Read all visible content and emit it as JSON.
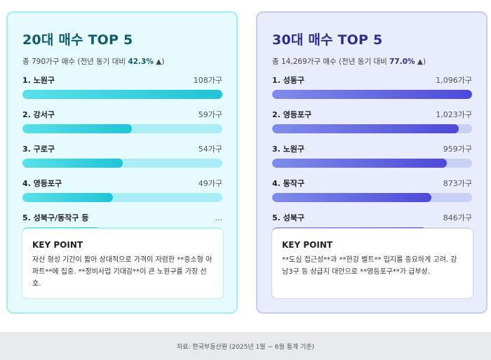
{
  "cards": [
    {
      "title": "20대 매수 TOP 5",
      "subtitle_prefix": "총 790가구 매수 (전년 동기 대비 ",
      "subtitle_pct": "42.3%",
      "subtitle_suffix": " ▲)",
      "items": [
        {
          "name": "1. 노원구",
          "value": "108가구",
          "level": 1.0
        },
        {
          "name": "2. 강서구",
          "value": "59가구",
          "level": 0.546
        },
        {
          "name": "3. 구로구",
          "value": "54가구",
          "level": 0.5
        },
        {
          "name": "4. 영등포구",
          "value": "49가구",
          "level": 0.454
        },
        {
          "name": "5. 성북구/동작구 등",
          "value": "...",
          "level": 0.39
        }
      ],
      "key_title": "KEY POINT",
      "key_text": "자산 형성 기간이 짧아 상대적으로 가격이 저렴한 **중소형 아파트**에 집중. **정비사업 기대감**이 큰 노원구를 가장 선호."
    },
    {
      "title": "30대 매수 TOP 5",
      "subtitle_prefix": "총 14,269가구 매수 (전년 동기 대비 ",
      "subtitle_pct": "77.0%",
      "subtitle_suffix": " ▲)",
      "items": [
        {
          "name": "1. 성동구",
          "value": "1,096가구",
          "level": 1.0
        },
        {
          "name": "2. 영등포구",
          "value": "1,023가구",
          "level": 0.933
        },
        {
          "name": "3. 노원구",
          "value": "959가구",
          "level": 0.875
        },
        {
          "name": "4. 동작구",
          "value": "873가구",
          "level": 0.797
        },
        {
          "name": "5. 성북구",
          "value": "846가구",
          "level": 0.772
        }
      ],
      "key_title": "KEY POINT",
      "key_text": "**도심 접근성**과 **한강 벨트** 입지를 중요하게 고려. 강남3구 등 상급지 대안으로 **영등포구**가 급부상."
    }
  ],
  "footer": "자료: 한국부동산원 (2025년 1월 ~ 6월 통계 기준)"
}
